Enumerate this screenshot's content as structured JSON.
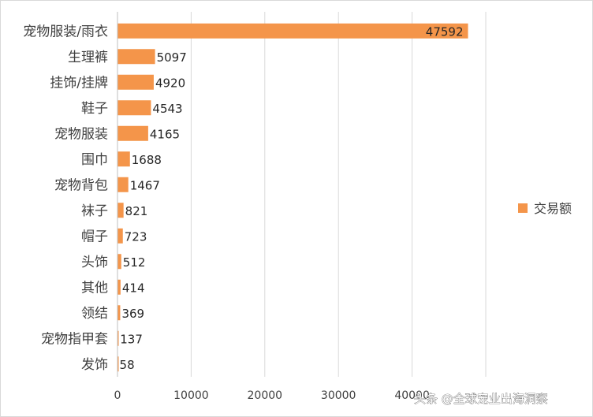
{
  "chart_data": {
    "type": "bar",
    "orientation": "horizontal",
    "categories": [
      "宠物服装/雨衣",
      "生理裤",
      "挂饰/挂牌",
      "鞋子",
      "宠物服装",
      "围巾",
      "宠物背包",
      "袜子",
      "帽子",
      "头饰",
      "其他",
      "领结",
      "宠物指甲套",
      "发饰"
    ],
    "series": [
      {
        "name": "交易额",
        "values": [
          47592,
          5097,
          4920,
          4543,
          4165,
          1688,
          1467,
          821,
          723,
          512,
          414,
          369,
          137,
          58
        ],
        "color": "#f4954a"
      }
    ],
    "xlim": [
      0,
      50000
    ],
    "xticks": [
      0,
      10000,
      20000,
      30000,
      40000,
      50000
    ],
    "xtick_labels": [
      "0",
      "10000",
      "20000",
      "30000",
      "40000",
      ""
    ],
    "grid": true,
    "legend_position": "right"
  },
  "watermark": {
    "text": "头条 @全球宠业出海洞察"
  }
}
